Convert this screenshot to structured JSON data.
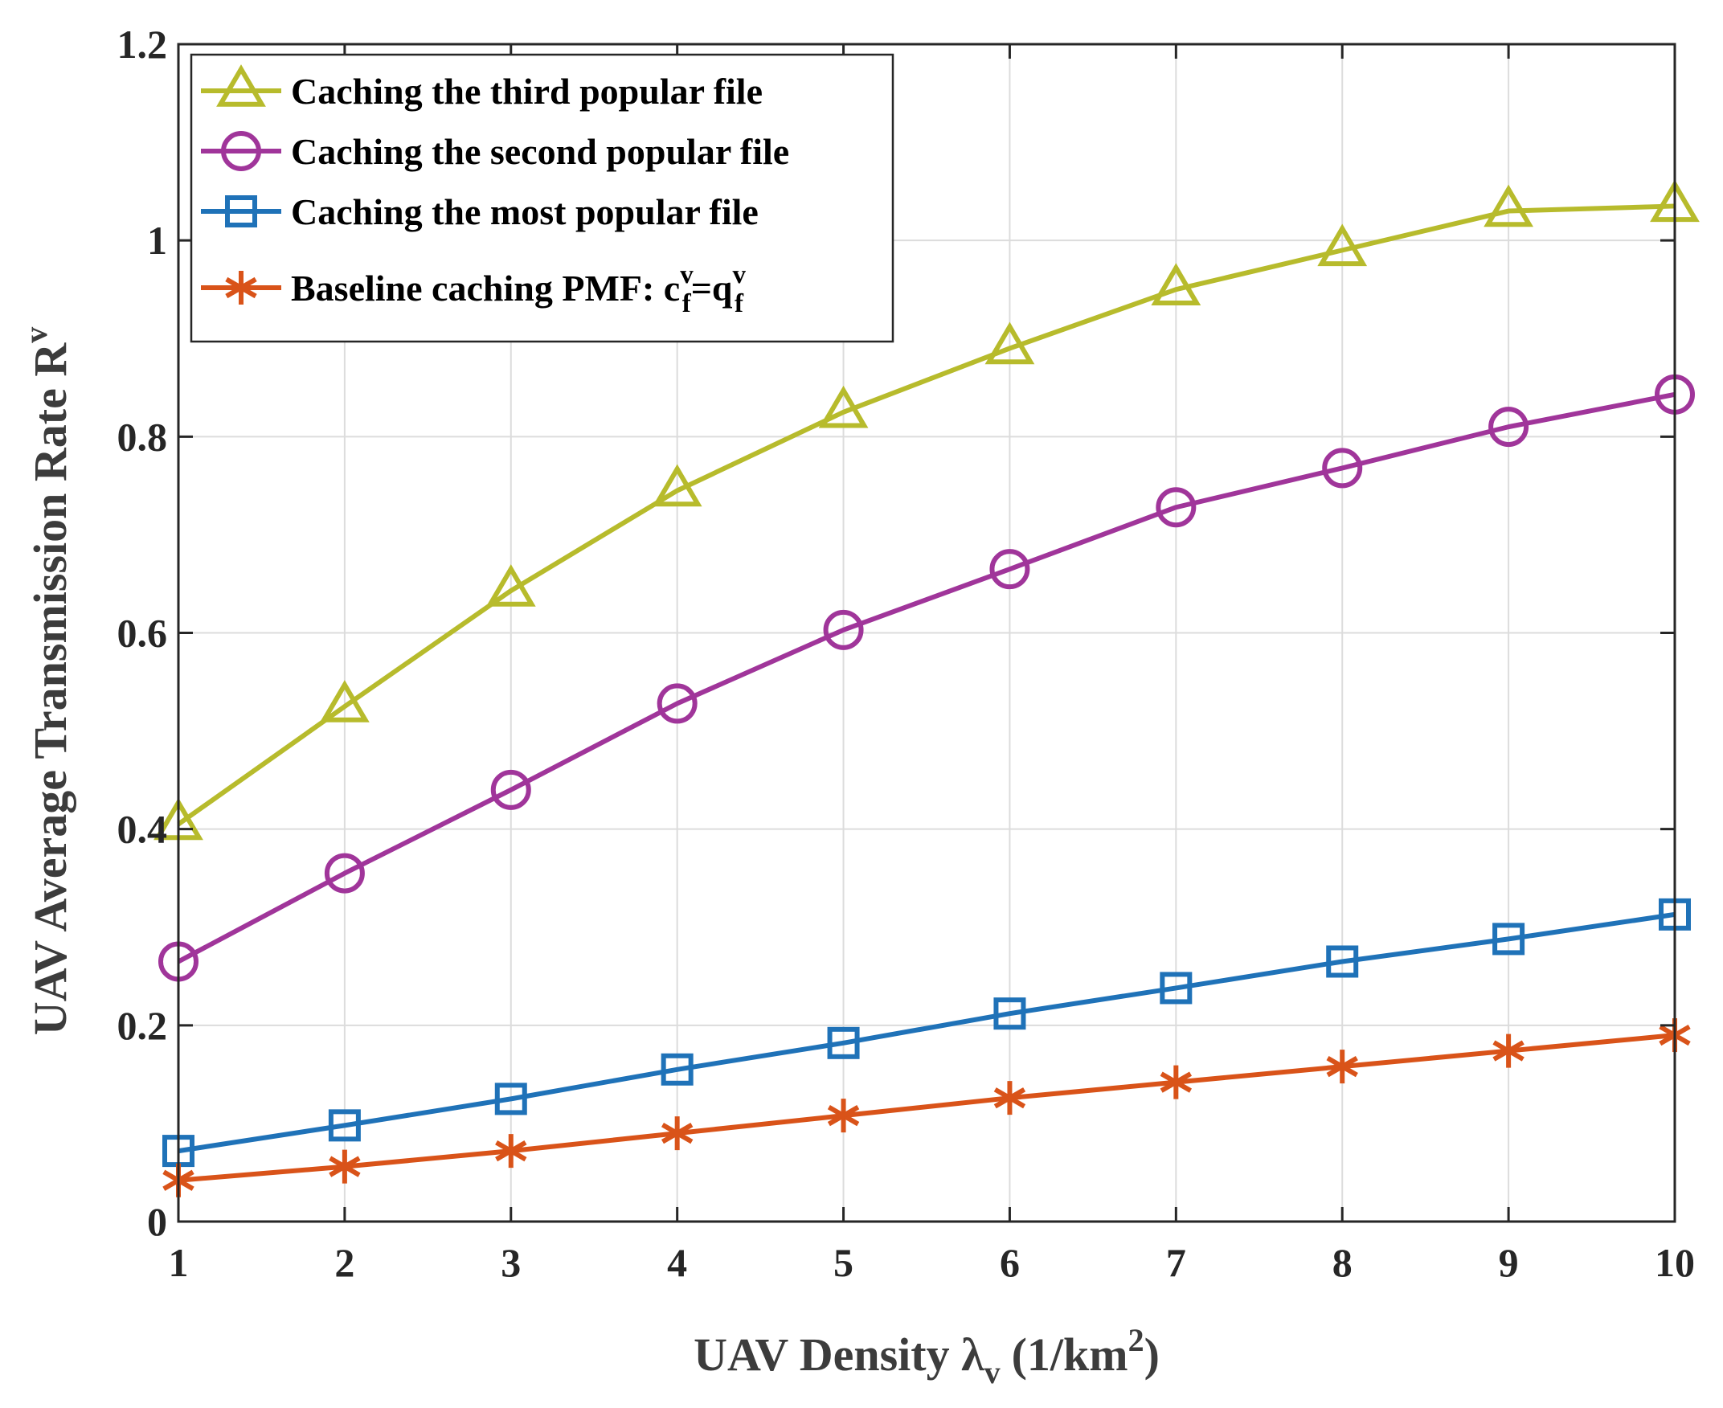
{
  "chart_data": {
    "type": "line",
    "title": "",
    "xlabel": {
      "main": "UAV Density λ",
      "subscript": "v",
      "unit_prefix": "(1/km",
      "unit_sup": "2",
      "unit_suffix": ")"
    },
    "ylabel": {
      "main": "UAV Average Transmission Rate R",
      "superscript": "v"
    },
    "x": [
      1,
      2,
      3,
      4,
      5,
      6,
      7,
      8,
      9,
      10
    ],
    "xlim": [
      1,
      10
    ],
    "ylim": [
      0,
      1.2
    ],
    "xticks": [
      "1",
      "2",
      "3",
      "4",
      "5",
      "6",
      "7",
      "8",
      "9",
      "10"
    ],
    "yticks": [
      {
        "value": 0,
        "label": "0"
      },
      {
        "value": 0.2,
        "label": "0.2"
      },
      {
        "value": 0.4,
        "label": "0.4"
      },
      {
        "value": 0.6,
        "label": "0.6"
      },
      {
        "value": 0.8,
        "label": "0.8"
      },
      {
        "value": 1.0,
        "label": "1"
      },
      {
        "value": 1.2,
        "label": "1.2"
      }
    ],
    "grid": true,
    "legend_position": "top-left",
    "series": [
      {
        "name": "Caching the third popular file",
        "color": "#b7bb2c",
        "marker": "triangle",
        "values": [
          0.405,
          0.525,
          0.643,
          0.745,
          0.825,
          0.89,
          0.95,
          0.99,
          1.03,
          1.035
        ]
      },
      {
        "name": "Caching the second popular file",
        "color": "#a0359a",
        "marker": "circle",
        "values": [
          0.265,
          0.355,
          0.44,
          0.528,
          0.603,
          0.665,
          0.728,
          0.768,
          0.81,
          0.843
        ]
      },
      {
        "name": "Caching the most popular file",
        "color": "#1f72b8",
        "marker": "square",
        "values": [
          0.072,
          0.098,
          0.125,
          0.155,
          0.182,
          0.212,
          0.238,
          0.265,
          0.288,
          0.313
        ]
      },
      {
        "name": "Baseline caching PMF: c",
        "color": "#d95319",
        "marker": "asterisk",
        "values": [
          0.042,
          0.056,
          0.072,
          0.09,
          0.108,
          0.126,
          0.142,
          0.158,
          0.174,
          0.19
        ],
        "math": {
          "c_sup": "v",
          "c_sub": "f",
          "equals": "=q",
          "q_sup": "v",
          "q_sub": "f"
        }
      }
    ]
  }
}
